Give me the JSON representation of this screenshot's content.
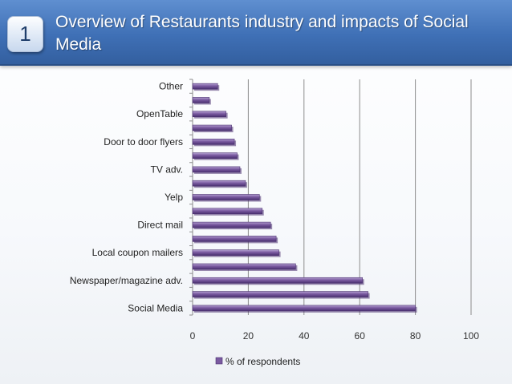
{
  "slide": {
    "badge_number": "1",
    "title": "Overview of Restaurants industry and impacts of Social Media"
  },
  "colors": {
    "bar_fill": "#7a5aa0",
    "bar_highlight": "#b39fd0",
    "bar_shadow": "#4a3070",
    "gridline": "#8c8c8c"
  },
  "chart_data": {
    "type": "bar",
    "orientation": "horizontal",
    "title": "",
    "xlabel": "",
    "ylabel": "",
    "xlim": [
      0,
      100
    ],
    "x_ticks": [
      0,
      20,
      40,
      60,
      80,
      100
    ],
    "grid": true,
    "legend": "bottom",
    "categories": [
      "Social Media",
      "",
      "Newspaper/magazine adv.",
      "",
      "Local coupon mailers",
      "",
      "Direct mail",
      "",
      "Yelp",
      "",
      "TV adv.",
      "",
      "Door to door flyers",
      "",
      "OpenTable",
      "",
      "Other"
    ],
    "series": [
      {
        "name": "% of respondents",
        "values": [
          80,
          63,
          61,
          37,
          31,
          30,
          28,
          25,
          24,
          19,
          17,
          16,
          15,
          14,
          12,
          6,
          9
        ]
      }
    ]
  }
}
